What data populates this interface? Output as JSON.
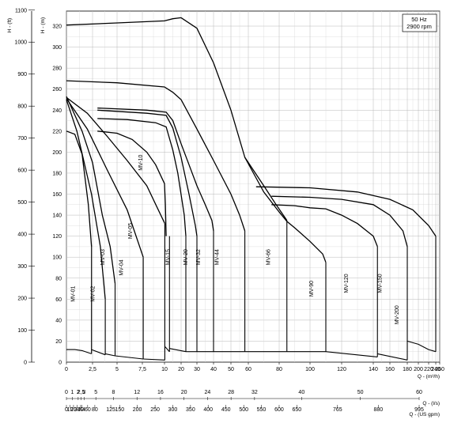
{
  "chart_data": {
    "type": "line",
    "title": "",
    "info_box": [
      "50 Hz",
      "2900 rpm"
    ],
    "left_axis_title": "H - (ft)",
    "right_axis_title": "H - (m)",
    "x_axis_titles": [
      "Q - (m³/h)",
      "Q - (l/s)",
      "Q - (US gpm)"
    ],
    "ylim_m": [
      0,
      330
    ],
    "ylim_ft": [
      0,
      1100
    ],
    "x_ticks_m3h": [
      {
        "pos": 0,
        "label": "0"
      },
      {
        "pos": 2.5,
        "label": "2,5"
      },
      {
        "pos": 5,
        "label": "5"
      },
      {
        "pos": 7.5,
        "label": "7,5"
      },
      {
        "pos": 10,
        "label": "10"
      },
      {
        "pos": 20,
        "label": "20"
      },
      {
        "pos": 30,
        "label": "30"
      },
      {
        "pos": 40,
        "label": "40"
      },
      {
        "pos": 50,
        "label": "50"
      },
      {
        "pos": 60,
        "label": "60"
      },
      {
        "pos": 80,
        "label": "80"
      },
      {
        "pos": 100,
        "label": "100"
      },
      {
        "pos": 120,
        "label": "120"
      },
      {
        "pos": 140,
        "label": "140"
      },
      {
        "pos": 160,
        "label": "160"
      },
      {
        "pos": 180,
        "label": "180"
      },
      {
        "pos": 200,
        "label": "200"
      },
      {
        "pos": 220,
        "label": "220"
      },
      {
        "pos": 240,
        "label": "240"
      },
      {
        "pos": 260,
        "label": "260"
      }
    ],
    "x_ticks_ls": [
      {
        "pos": 0,
        "label": "0"
      },
      {
        "pos": 3.6,
        "label": "1"
      },
      {
        "pos": 7.2,
        "label": "2"
      },
      {
        "pos": 9.0,
        "label": "2,5"
      },
      {
        "pos": 10.8,
        "label": "3"
      },
      {
        "pos": 18,
        "label": "5"
      },
      {
        "pos": 28.8,
        "label": "8"
      },
      {
        "pos": 43.2,
        "label": "12"
      },
      {
        "pos": 57.6,
        "label": "16"
      },
      {
        "pos": 72,
        "label": "20"
      },
      {
        "pos": 86.4,
        "label": "24"
      },
      {
        "pos": 100.8,
        "label": "28"
      },
      {
        "pos": 115.2,
        "label": "32"
      },
      {
        "pos": 144,
        "label": "40"
      },
      {
        "pos": 180,
        "label": "50"
      },
      {
        "pos": 216,
        "label": "60"
      }
    ],
    "x_ticks_gpm": [
      {
        "pos": 0,
        "label": "0"
      },
      {
        "pos": 2.27,
        "label": "10"
      },
      {
        "pos": 4.54,
        "label": "20"
      },
      {
        "pos": 6.81,
        "label": "30"
      },
      {
        "pos": 9.08,
        "label": "40"
      },
      {
        "pos": 9.99,
        "label": "44"
      },
      {
        "pos": 13.6,
        "label": "60"
      },
      {
        "pos": 18.2,
        "label": "80"
      },
      {
        "pos": 28.4,
        "label": "125"
      },
      {
        "pos": 34.1,
        "label": "150"
      },
      {
        "pos": 45.4,
        "label": "200"
      },
      {
        "pos": 56.8,
        "label": "250"
      },
      {
        "pos": 68.1,
        "label": "300"
      },
      {
        "pos": 79.5,
        "label": "350"
      },
      {
        "pos": 90.8,
        "label": "400"
      },
      {
        "pos": 102.2,
        "label": "450"
      },
      {
        "pos": 113.6,
        "label": "500"
      },
      {
        "pos": 124.9,
        "label": "550"
      },
      {
        "pos": 136.3,
        "label": "600"
      },
      {
        "pos": 147.6,
        "label": "650"
      },
      {
        "pos": 173.7,
        "label": "765"
      },
      {
        "pos": 199.8,
        "label": "880"
      },
      {
        "pos": 226.0,
        "label": "995"
      }
    ],
    "y_ticks_m": [
      0,
      20,
      40,
      60,
      80,
      100,
      120,
      140,
      160,
      180,
      200,
      220,
      240,
      260,
      280,
      300,
      320
    ],
    "y_ticks_ft": [
      0,
      100,
      200,
      300,
      400,
      500,
      600,
      700,
      800,
      900,
      1000,
      1100
    ],
    "regions": [
      {
        "name": "MV-01",
        "label": "MV-01",
        "xmin": 0,
        "xmax": 2.4,
        "label_x": 0.8,
        "label_y": 65,
        "top": [
          [
            0,
            220
          ],
          [
            0.8,
            217
          ],
          [
            1.5,
            198
          ],
          [
            2.1,
            150
          ],
          [
            2.4,
            110
          ]
        ],
        "bottom": [
          [
            0,
            12
          ],
          [
            0.8,
            12
          ],
          [
            1.5,
            11
          ],
          [
            2.4,
            8
          ]
        ]
      },
      {
        "name": "MV-02",
        "label": "MV-02",
        "xmin": 2.4,
        "xmax": 3.8,
        "label_x": 2.7,
        "label_y": 65,
        "top": [
          [
            0,
            250
          ],
          [
            1,
            220
          ],
          [
            2.4,
            160
          ],
          [
            3.3,
            110
          ],
          [
            3.8,
            60
          ]
        ],
        "bottom": [
          [
            2.4,
            12
          ],
          [
            3.8,
            7
          ]
        ]
      },
      {
        "name": "MV-03",
        "label": "MV-03",
        "xmin": 3.8,
        "xmax": 4.8,
        "label_x": 3.7,
        "label_y": 100,
        "top": [
          [
            0,
            253
          ],
          [
            1.5,
            220
          ],
          [
            2.5,
            190
          ],
          [
            3.5,
            140
          ],
          [
            4.3,
            110
          ],
          [
            4.8,
            75
          ]
        ],
        "bottom": [
          [
            3.8,
            8
          ],
          [
            4.8,
            6
          ]
        ]
      },
      {
        "name": "MV-04",
        "label": "MV-04",
        "xmin": 4.8,
        "xmax": 7.6,
        "label_x": 5.6,
        "label_y": 90,
        "top": [
          [
            0,
            251
          ],
          [
            2,
            222
          ],
          [
            4,
            183
          ],
          [
            6,
            145
          ],
          [
            7.6,
            100
          ]
        ],
        "bottom": [
          [
            4.8,
            6
          ],
          [
            7.6,
            3
          ]
        ]
      },
      {
        "name": "MV-05",
        "label": "MV-05",
        "xmin": 7.6,
        "xmax": 10.2,
        "label_x": 6.5,
        "label_y": 125,
        "top": [
          [
            0,
            252
          ],
          [
            2,
            237
          ],
          [
            4,
            215
          ],
          [
            6,
            192
          ],
          [
            8,
            168
          ],
          [
            10.2,
            132
          ]
        ],
        "bottom": [
          [
            7.6,
            3
          ],
          [
            10.2,
            2
          ]
        ]
      },
      {
        "name": "MV-10",
        "label": "MV-10",
        "xmin": 10.2,
        "xmax": 13,
        "label_x": 7.5,
        "label_y": 190,
        "top": [
          [
            3,
            220
          ],
          [
            5,
            218
          ],
          [
            6.5,
            212
          ],
          [
            8,
            200
          ],
          [
            9,
            188
          ],
          [
            10,
            170
          ],
          [
            10.5,
            150
          ],
          [
            11,
            120
          ]
        ],
        "bottom": [
          [
            10.2,
            15
          ],
          [
            13,
            10
          ]
        ]
      },
      {
        "name": "MV-15",
        "label": "MV-15",
        "xmin": 13,
        "xmax": 23,
        "label_x": 13,
        "label_y": 100,
        "top": [
          [
            3,
            232
          ],
          [
            6,
            231
          ],
          [
            9,
            228
          ],
          [
            11,
            224
          ],
          [
            15,
            202
          ],
          [
            18,
            180
          ],
          [
            22,
            140
          ],
          [
            23,
            120
          ]
        ],
        "bottom": [
          [
            13,
            13
          ],
          [
            23,
            10
          ]
        ]
      },
      {
        "name": "MV-20",
        "label": "MV-20",
        "xmin": 23,
        "xmax": 30,
        "label_x": 24,
        "label_y": 100,
        "top": [
          [
            3,
            240
          ],
          [
            8,
            237
          ],
          [
            11,
            235
          ],
          [
            15,
            223
          ],
          [
            20,
            195
          ],
          [
            25,
            160
          ],
          [
            29,
            130
          ],
          [
            30,
            120
          ]
        ],
        "bottom": [
          [
            23,
            10
          ],
          [
            30,
            10
          ]
        ]
      },
      {
        "name": "MV-32",
        "label": "MV-32",
        "xmin": 30,
        "xmax": 40,
        "label_x": 32,
        "label_y": 100,
        "top": [
          [
            3,
            242
          ],
          [
            8,
            240
          ],
          [
            11,
            238
          ],
          [
            15,
            230
          ],
          [
            20,
            208
          ],
          [
            25,
            188
          ],
          [
            30,
            168
          ],
          [
            35,
            150
          ],
          [
            39,
            135
          ],
          [
            40,
            125
          ]
        ],
        "bottom": [
          [
            30,
            10
          ],
          [
            40,
            10
          ]
        ]
      },
      {
        "name": "MV-44",
        "label": "MV-44",
        "xmin": 40,
        "xmax": 58,
        "label_x": 43,
        "label_y": 100,
        "top": [
          [
            0,
            268
          ],
          [
            5,
            266
          ],
          [
            10,
            262
          ],
          [
            15,
            257
          ],
          [
            20,
            250
          ],
          [
            30,
            222
          ],
          [
            40,
            192
          ],
          [
            50,
            160
          ],
          [
            55,
            140
          ],
          [
            58,
            125
          ]
        ],
        "bottom": [
          [
            40,
            10
          ],
          [
            58,
            10
          ]
        ]
      },
      {
        "name": "MV-66",
        "label": "MV-66",
        "xmin": 58,
        "xmax": 85,
        "label_x": 74,
        "label_y": 100,
        "top": [
          [
            0,
            321
          ],
          [
            5,
            323
          ],
          [
            10,
            325
          ],
          [
            15,
            327
          ],
          [
            20,
            328
          ],
          [
            30,
            318
          ],
          [
            40,
            285
          ],
          [
            50,
            240
          ],
          [
            58,
            195
          ],
          [
            70,
            168
          ],
          [
            78,
            150
          ],
          [
            85,
            135
          ]
        ],
        "bottom": [
          [
            58,
            10
          ],
          [
            85,
            10
          ]
        ]
      },
      {
        "name": "MV-90",
        "label": "MV-90",
        "xmin": 85,
        "xmax": 110,
        "label_x": 102,
        "label_y": 70,
        "top": [
          [
            58,
            195
          ],
          [
            70,
            162
          ],
          [
            80,
            143
          ],
          [
            85,
            134
          ],
          [
            90,
            128
          ],
          [
            100,
            115
          ],
          [
            108,
            103
          ],
          [
            110,
            95
          ]
        ],
        "bottom": [
          [
            85,
            10
          ],
          [
            110,
            10
          ]
        ]
      },
      {
        "name": "MV-120",
        "label": "MV-120",
        "xmin": 110,
        "xmax": 145,
        "label_x": 124,
        "label_y": 75,
        "top": [
          [
            75,
            150
          ],
          [
            90,
            149
          ],
          [
            100,
            147
          ],
          [
            110,
            146
          ],
          [
            120,
            140
          ],
          [
            130,
            132
          ],
          [
            140,
            120
          ],
          [
            145,
            110
          ]
        ],
        "bottom": [
          [
            110,
            10
          ],
          [
            145,
            5
          ]
        ]
      },
      {
        "name": "MV-150",
        "label": "MV-150",
        "xmin": 145,
        "xmax": 180,
        "label_x": 150,
        "label_y": 75,
        "top": [
          [
            75,
            158
          ],
          [
            100,
            157
          ],
          [
            120,
            155
          ],
          [
            140,
            150
          ],
          [
            160,
            140
          ],
          [
            175,
            125
          ],
          [
            180,
            110
          ]
        ],
        "bottom": [
          [
            145,
            8
          ],
          [
            180,
            2
          ]
        ]
      },
      {
        "name": "MV-200",
        "label": "MV-200",
        "xmin": 180,
        "xmax": 240,
        "label_x": 170,
        "label_y": 45,
        "top": [
          [
            65,
            167
          ],
          [
            100,
            166
          ],
          [
            130,
            162
          ],
          [
            160,
            155
          ],
          [
            190,
            145
          ],
          [
            220,
            130
          ],
          [
            240,
            120
          ]
        ],
        "bottom": [
          [
            180,
            20
          ],
          [
            200,
            17
          ],
          [
            220,
            12
          ],
          [
            240,
            10
          ]
        ]
      }
    ]
  }
}
